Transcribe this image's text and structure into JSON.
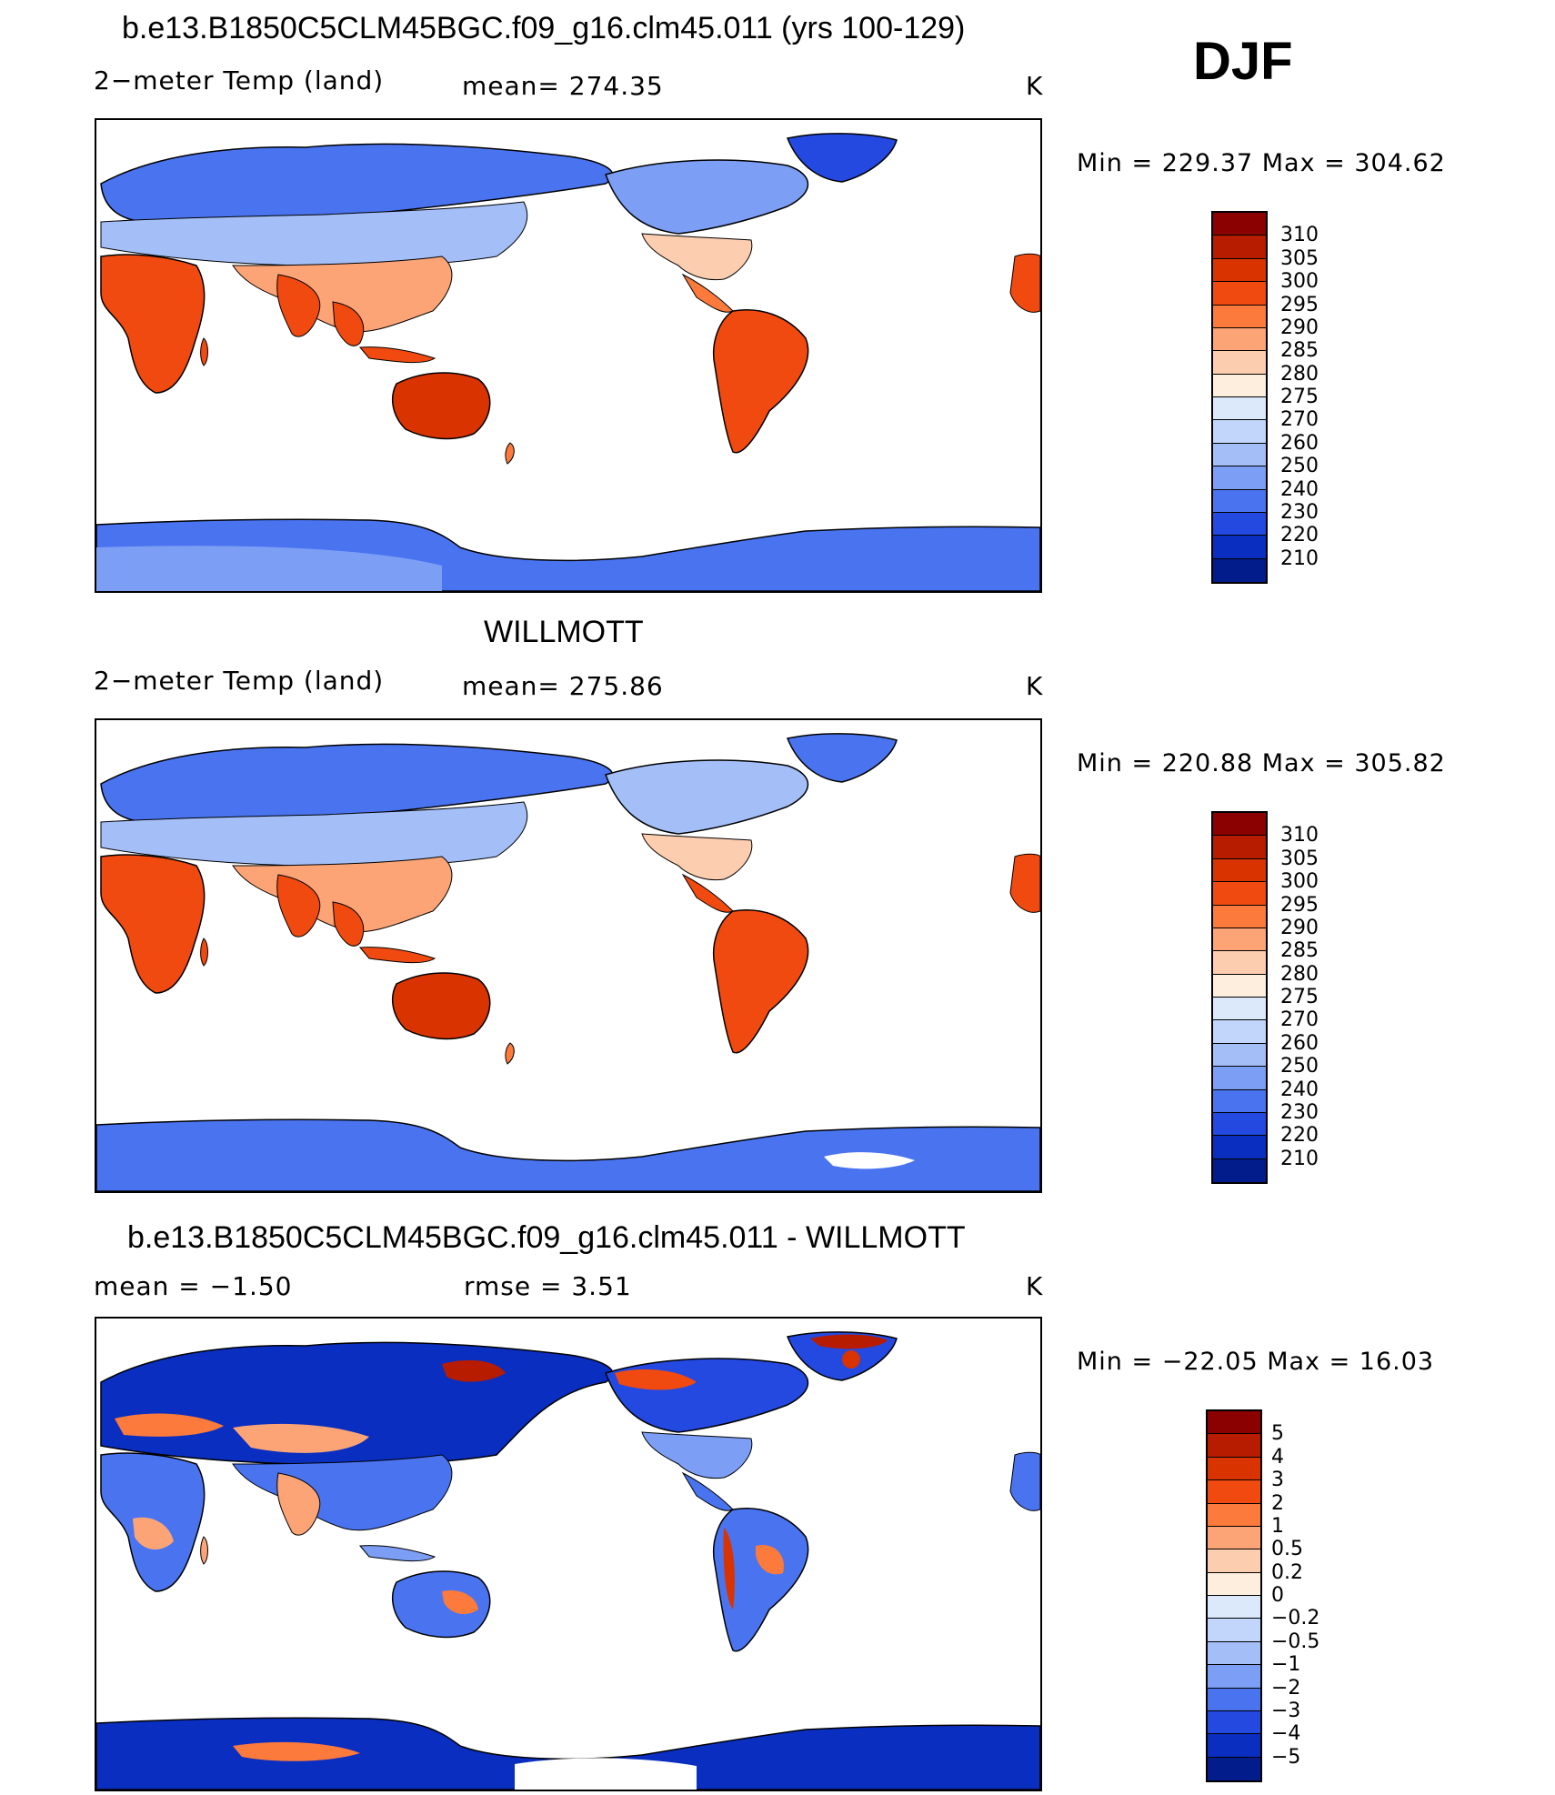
{
  "season": "DJF",
  "colors": {
    "abs": [
      "#8b0000",
      "#b71c00",
      "#d93300",
      "#f04a10",
      "#fb7a3c",
      "#fca476",
      "#fdcdb0",
      "#fdeedd",
      "#dbe9fb",
      "#c2d5fa",
      "#a4bff8",
      "#7c9ef5",
      "#4a74ef",
      "#2349e0",
      "#0a2ec0",
      "#031c8c"
    ],
    "diff": [
      "#8b0000",
      "#b71c00",
      "#d93300",
      "#f04a10",
      "#fb7a3c",
      "#fca476",
      "#fdcdb0",
      "#fdeedd",
      "#dbe9fb",
      "#c2d5fa",
      "#a4bff8",
      "#7c9ef5",
      "#4a74ef",
      "#2349e0",
      "#0a2ec0",
      "#031c8c"
    ]
  },
  "panels": [
    {
      "title": "b.e13.B1850C5CLM45BGC.f09_g16.clm45.011 (yrs 100-129)",
      "left_label": "2−meter Temp (land)",
      "mid_label": "mean=  274.35",
      "units": "K",
      "minmax": "Min  =  229.37  Max  =  304.62",
      "legend_ticks": [
        "310",
        "305",
        "300",
        "295",
        "290",
        "285",
        "280",
        "275",
        "270",
        "260",
        "250",
        "240",
        "230",
        "220",
        "210"
      ],
      "kind": "abs"
    },
    {
      "title": "WILLMOTT",
      "left_label": "2−meter Temp (land)",
      "mid_label": "mean=  275.86",
      "units": "K",
      "minmax": "Min  =  220.88  Max  =  305.82",
      "legend_ticks": [
        "310",
        "305",
        "300",
        "295",
        "290",
        "285",
        "280",
        "275",
        "270",
        "260",
        "250",
        "240",
        "230",
        "220",
        "210"
      ],
      "kind": "abs"
    },
    {
      "title": "b.e13.B1850C5CLM45BGC.f09_g16.clm45.011 - WILLMOTT",
      "left_label": "mean  =    −1.50",
      "mid_label": "rmse  =     3.51",
      "units": "K",
      "minmax": "Min  =  −22.05  Max  =    16.03",
      "legend_ticks": [
        "5",
        "4",
        "3",
        "2",
        "1",
        "0.5",
        "0.2",
        "0",
        "−0.2",
        "−0.5",
        "−1",
        "−2",
        "−3",
        "−4",
        "−5"
      ],
      "kind": "diff"
    }
  ]
}
